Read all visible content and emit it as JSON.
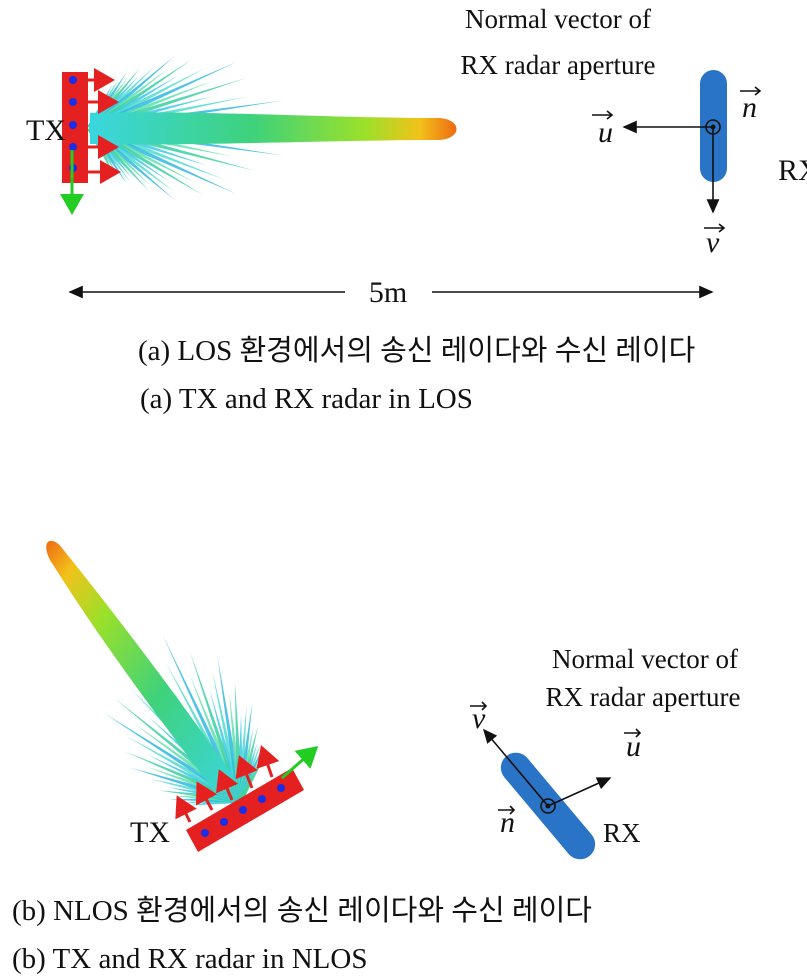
{
  "panels": [
    {
      "aperture_label": [
        "Normal vector of",
        "RX radar aperture"
      ],
      "tx": "TX",
      "rx": "RX",
      "vectors": {
        "u": "u",
        "n": "n",
        "v": "v"
      },
      "distance": "5m",
      "caption_ko": "(a) LOS 환경에서의 송신 레이다와 수신 레이다",
      "caption_en": "(a) TX and RX radar in LOS"
    },
    {
      "aperture_label": [
        "Normal vector of",
        "RX radar aperture"
      ],
      "tx": "TX",
      "rx": "RX",
      "vectors": {
        "u": "u",
        "n": "n",
        "v": "v"
      },
      "caption_ko": "(b) NLOS 환경에서의 송신 레이다와 수신 레이다",
      "caption_en": "(b) TX and RX radar in NLOS"
    }
  ]
}
